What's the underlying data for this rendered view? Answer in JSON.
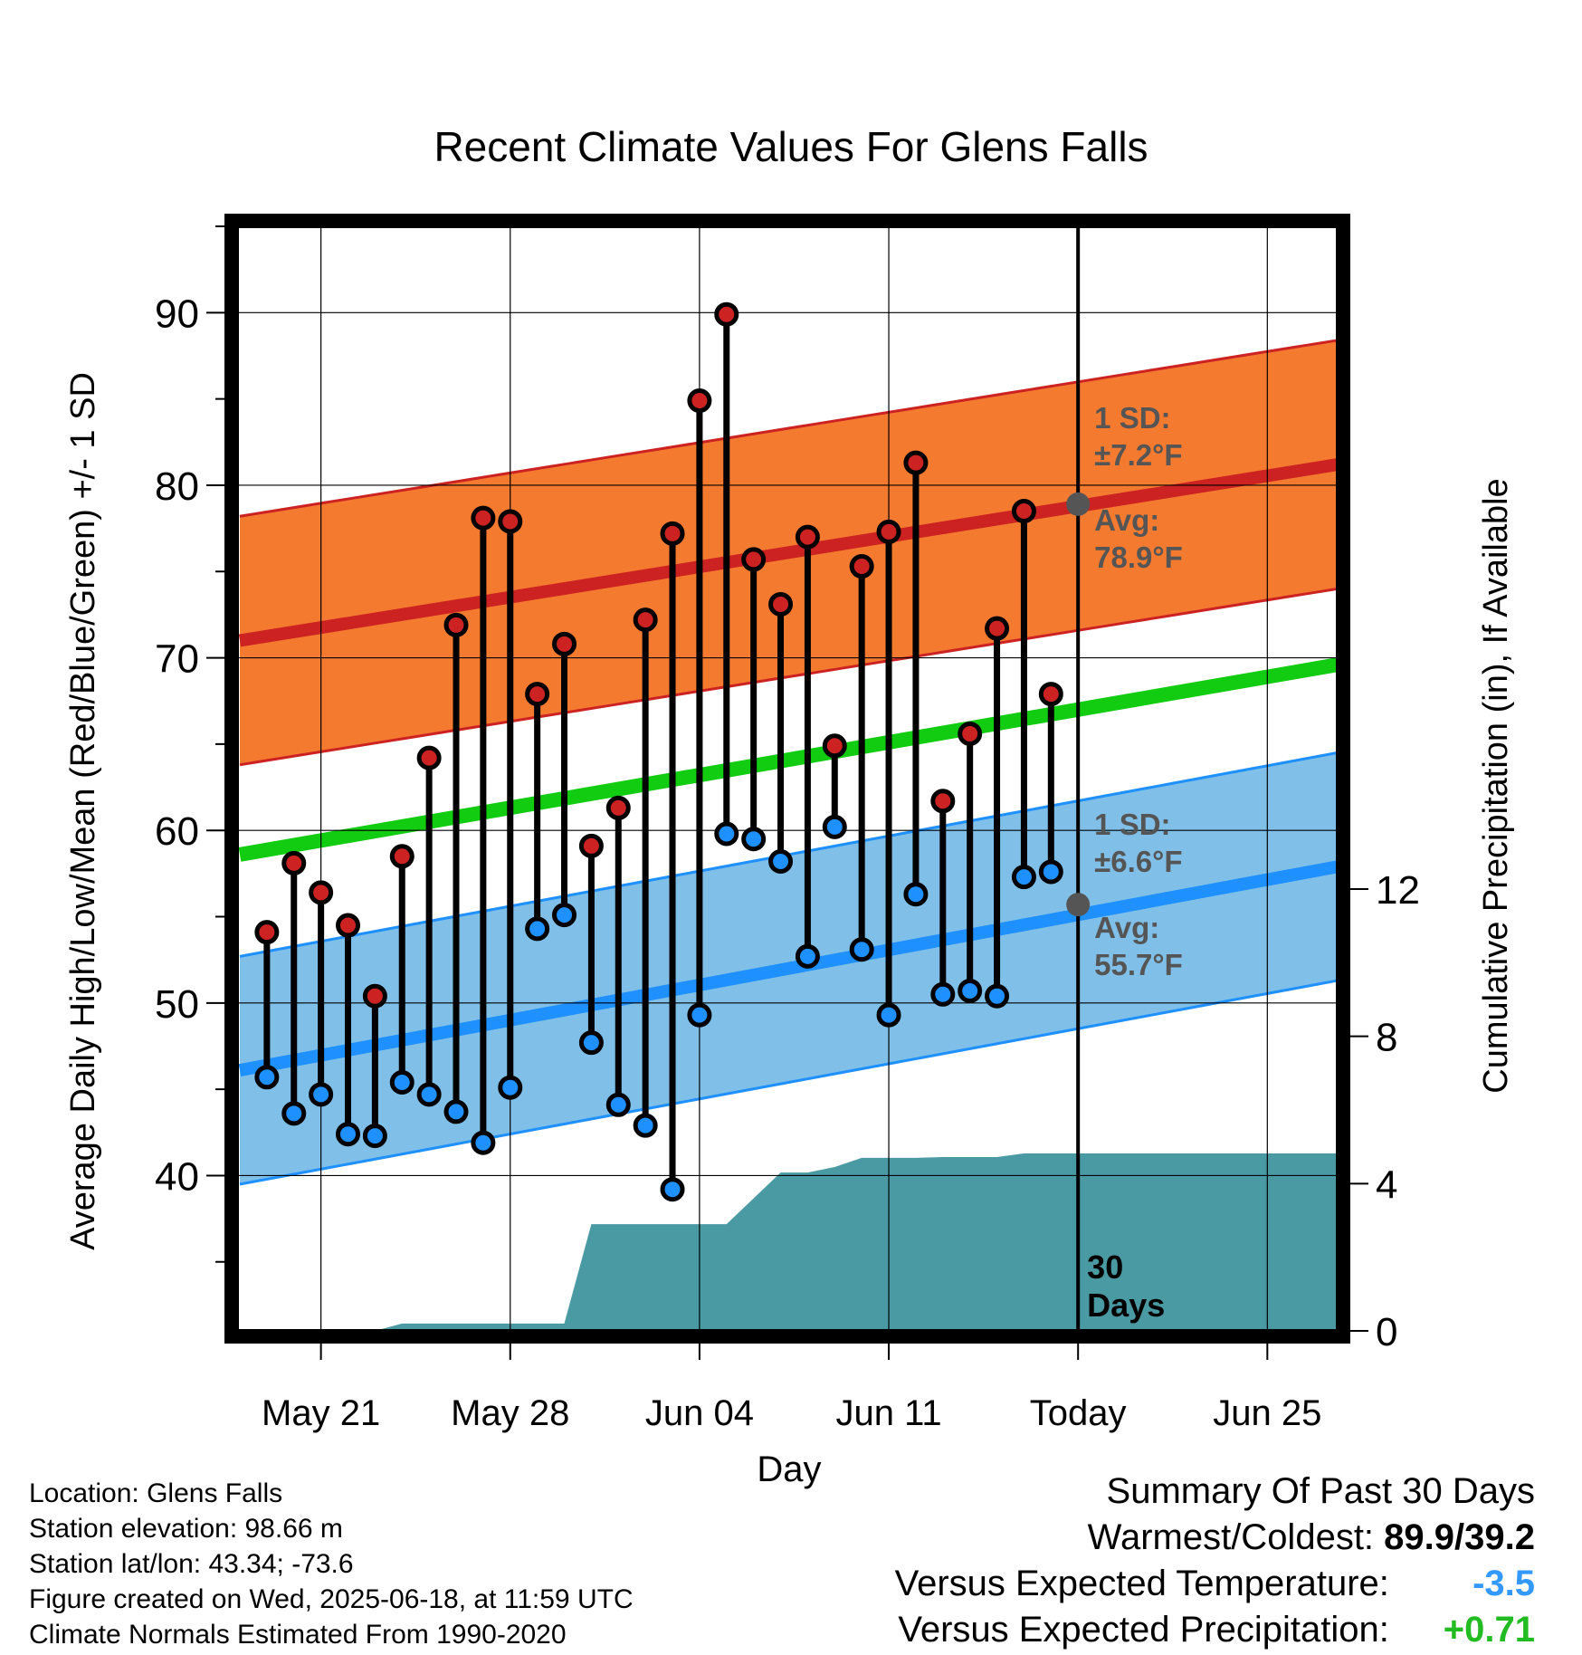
{
  "chart_data": {
    "type": "line",
    "title": "Recent Climate Values For Glens Falls",
    "xlabel": "Day",
    "ylabel": "Average Daily High/Low/Mean (Red/Blue/Green) +/- 1 SD",
    "y2label": "Cumulative Precipitation (in), If Available",
    "ylim": [
      31,
      95
    ],
    "y2lim": [
      0,
      30
    ],
    "y_ticks": [
      "40",
      "50",
      "60",
      "70",
      "80",
      "90"
    ],
    "y2_ticks": [
      "0",
      "4",
      "8",
      "12"
    ],
    "x_ticks": [
      "May 21",
      "May 28",
      "Jun 04",
      "Jun 11",
      "Today",
      "Jun 25"
    ],
    "x_tick_days": [
      -28,
      -21,
      -14,
      -7,
      0,
      7
    ],
    "xlim": [
      -31.1,
      9.6
    ],
    "grid": true,
    "today_marker": "30 Days",
    "observed": {
      "days": [
        -30,
        -29,
        -28,
        -27,
        -26,
        -25,
        -24,
        -23,
        -22,
        -21,
        -20,
        -19,
        -18,
        -17,
        -16,
        -15,
        -14,
        -13,
        -12,
        -11,
        -10,
        -9,
        -8,
        -7,
        -6,
        -5,
        -4,
        -3,
        -2,
        -1
      ],
      "high": [
        54.1,
        58.1,
        56.4,
        54.5,
        50.4,
        58.5,
        64.2,
        71.9,
        78.1,
        77.9,
        67.9,
        70.8,
        59.1,
        61.3,
        72.2,
        77.2,
        84.9,
        89.9,
        75.7,
        73.1,
        77.0,
        64.9,
        75.3,
        77.3,
        81.3,
        61.7,
        65.6,
        71.7,
        78.5,
        67.9
      ],
      "low": [
        45.7,
        43.6,
        44.7,
        42.4,
        42.3,
        45.4,
        44.7,
        43.7,
        41.9,
        45.1,
        54.3,
        55.1,
        47.7,
        44.1,
        42.9,
        39.2,
        49.3,
        59.8,
        59.5,
        58.2,
        52.7,
        60.2,
        53.1,
        49.3,
        56.3,
        50.5,
        50.7,
        50.4,
        57.3,
        57.6
      ]
    },
    "normal_high": {
      "days": [
        -31,
        9.6
      ],
      "values": [
        71.0,
        81.2
      ],
      "sd_label": "1 SD:",
      "sd": "±7.2°F",
      "sd_value": 7.2,
      "today_label": "Avg:",
      "today_avg": "78.9°F",
      "today_value": 78.9
    },
    "normal_low": {
      "days": [
        -31,
        9.6
      ],
      "values": [
        46.1,
        57.9
      ],
      "sd_label": "1 SD:",
      "sd": "±6.6°F",
      "sd_value": 6.6,
      "today_label": "Avg:",
      "today_avg": "55.7°F",
      "today_value": 55.7
    },
    "normal_mean": {
      "days": [
        -31,
        9.6
      ],
      "values": [
        58.6,
        69.6
      ]
    },
    "precip_cumulative": {
      "days": [
        -31,
        -26,
        -25,
        -20,
        -19,
        -18,
        -17,
        -16,
        -15,
        -14,
        -13,
        -12,
        -11,
        -10,
        -9,
        -8,
        -7,
        -6,
        -5,
        -4,
        -3,
        -2,
        -1,
        9.6
      ],
      "values": [
        0,
        0,
        0.2,
        0.2,
        0.2,
        2.9,
        2.9,
        2.9,
        2.9,
        2.9,
        2.9,
        3.6,
        4.3,
        4.3,
        4.45,
        4.7,
        4.7,
        4.7,
        4.72,
        4.72,
        4.72,
        4.82,
        4.82,
        4.82
      ]
    },
    "colors": {
      "high": "#cc2222",
      "low": "#1e90ff",
      "mean": "#11cc11",
      "high_band": "#f47a30",
      "low_band": "#80c0e8",
      "precip": "#4a9aa4",
      "annotation": "#555555"
    }
  },
  "footer": {
    "location": "Location: Glens Falls",
    "elevation": "Station elevation: 98.66 m",
    "latlon": "Station lat/lon: 43.34; -73.6",
    "created": "Figure created on Wed, 2025-06-18, at 11:59 UTC",
    "normals": "Climate Normals Estimated From 1990-2020"
  },
  "summary": {
    "title": "Summary Of Past 30 Days",
    "warmest_label": "Warmest/Coldest:",
    "warmest_value": "89.9/39.2",
    "temp_label": "Versus Expected Temperature:",
    "temp_value": "-3.5",
    "precip_label": "Versus Expected Precipitation:",
    "precip_value": "+0.71"
  }
}
